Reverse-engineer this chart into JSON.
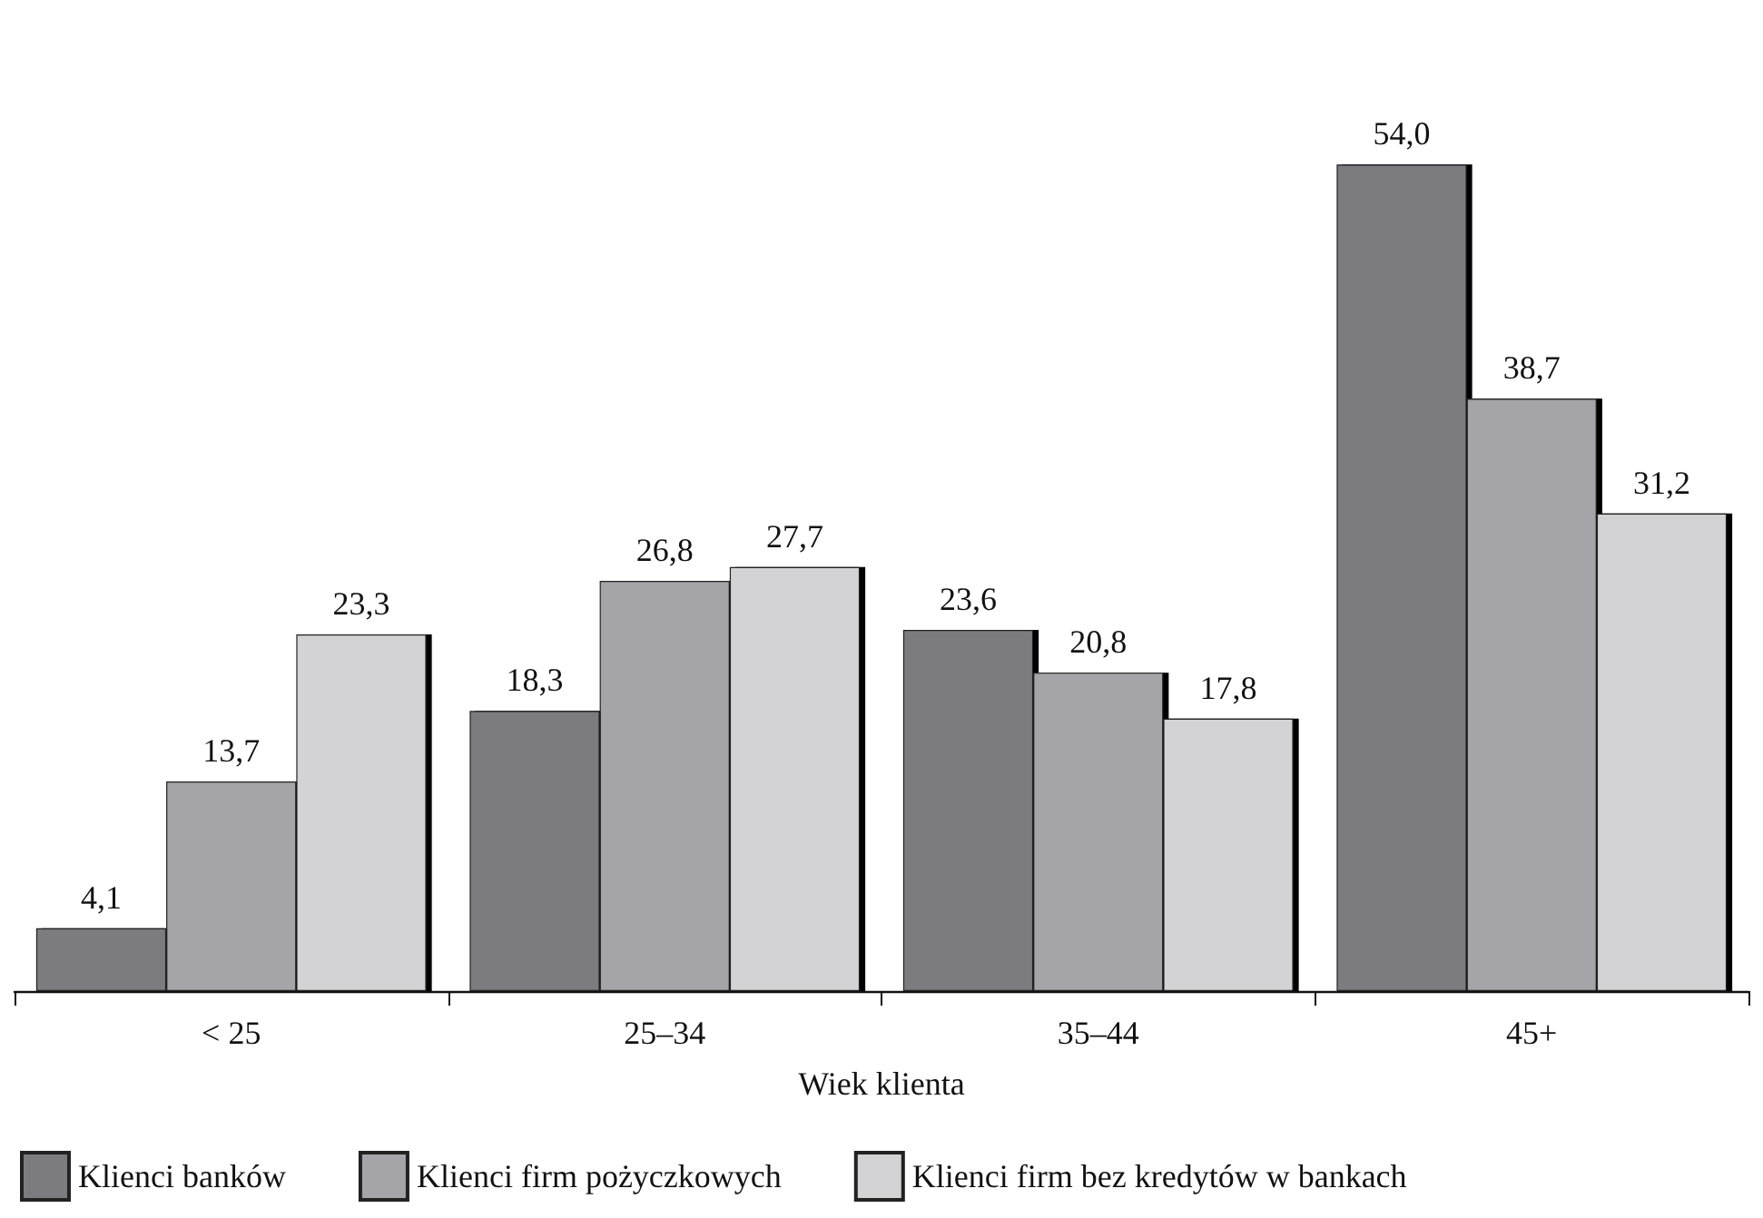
{
  "chart_data": {
    "type": "bar",
    "xlabel": "Wiek klienta",
    "categories": [
      "< 25",
      "25–34",
      "35–44",
      "45+"
    ],
    "series": [
      {
        "name": "Klienci banków",
        "color": "#7b7b80",
        "values": [
          4.1,
          18.3,
          23.6,
          54.0
        ],
        "value_labels": [
          "4,1",
          "18,3",
          "23,6",
          "54,0"
        ]
      },
      {
        "name": "Klienci firm pożyczkowych",
        "color": "#a4a4a9",
        "values": [
          13.7,
          26.8,
          20.8,
          38.7
        ],
        "value_labels": [
          "13,7",
          "26,8",
          "20,8",
          "38,7"
        ]
      },
      {
        "name": "Klienci firm bez kredytów w bankach",
        "color": "#d3d3d6",
        "values": [
          23.3,
          27.7,
          17.8,
          31.2
        ],
        "value_labels": [
          "23,3",
          "27,7",
          "17,8",
          "31,2"
        ]
      }
    ],
    "legend": "bottom"
  }
}
